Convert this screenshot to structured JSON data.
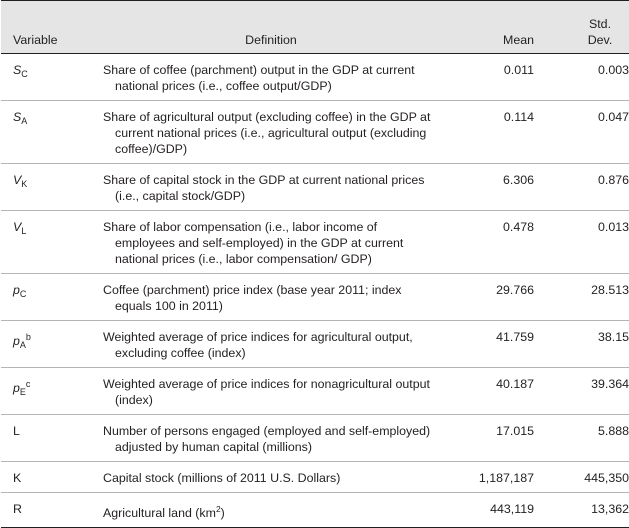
{
  "headers": {
    "variable": "Variable",
    "definition": "Definition",
    "mean": "Mean",
    "std_dev_line1": "Std.",
    "std_dev_line2": "Dev."
  },
  "rows": [
    {
      "var_main": "S",
      "var_sub": "C",
      "var_sup": "",
      "italic": true,
      "definition": "Share of coffee (parchment) output in the GDP at current national prices (i.e., coffee output/GDP)",
      "mean": "0.011",
      "sd": "0.003"
    },
    {
      "var_main": "S",
      "var_sub": "A",
      "var_sup": "",
      "italic": true,
      "definition": "Share of agricultural output (excluding coffee) in the GDP at current national prices (i.e., agricultural output (excluding coffee)/GDP)",
      "mean": "0.114",
      "sd": "0.047"
    },
    {
      "var_main": "V",
      "var_sub": "K",
      "var_sup": "",
      "italic": true,
      "definition": "Share of capital stock in the GDP at current national prices (i.e., capital stock/GDP)",
      "mean": "6.306",
      "sd": "0.876"
    },
    {
      "var_main": "V",
      "var_sub": "L",
      "var_sup": "",
      "italic": true,
      "definition": "Share of labor compensation (i.e., labor income of employees and self-employed) in the GDP at current national prices (i.e., labor compensation/ GDP)",
      "mean": "0.478",
      "sd": "0.013"
    },
    {
      "var_main": "p",
      "var_sub": "C",
      "var_sup": "",
      "italic": true,
      "definition": "Coffee (parchment) price index (base year 2011; index equals 100 in 2011)",
      "mean": "29.766",
      "sd": "28.513"
    },
    {
      "var_main": "p",
      "var_sub": "A",
      "var_sup": "b",
      "italic": true,
      "definition": "Weighted average of price indices for agricultural output, excluding coffee (index)",
      "mean": "41.759",
      "sd": "38.15"
    },
    {
      "var_main": "p",
      "var_sub": "E",
      "var_sup": "c",
      "italic": true,
      "definition": "Weighted average of price indices for nonagricultural output (index)",
      "mean": "40.187",
      "sd": "39.364"
    },
    {
      "var_main": "L",
      "var_sub": "",
      "var_sup": "",
      "italic": false,
      "definition": "Number of persons engaged (employed and self-employed) adjusted by human capital (millions)",
      "mean": "17.015",
      "sd": "5.888"
    },
    {
      "var_main": "K",
      "var_sub": "",
      "var_sup": "",
      "italic": false,
      "definition": "Capital stock (millions of 2011 U.S. Dollars)",
      "mean": "1,187,187",
      "sd": "445,350"
    },
    {
      "var_main": "R",
      "var_sub": "",
      "var_sup": "",
      "italic": false,
      "definition": "Agricultural land (km",
      "definition_sup": "2",
      "definition_end": ")",
      "mean": "443,119",
      "sd": "13,362"
    }
  ]
}
